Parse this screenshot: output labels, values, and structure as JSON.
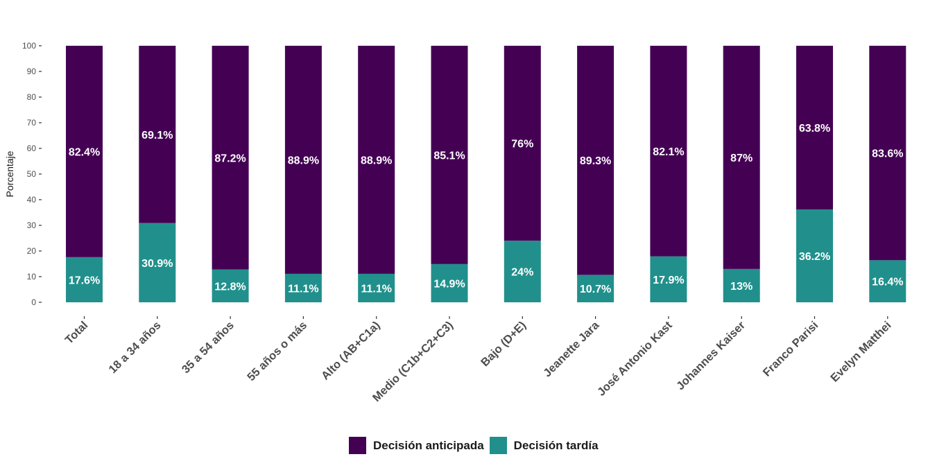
{
  "chart_data": {
    "type": "bar",
    "stacked": true,
    "title": "",
    "xlabel": "",
    "ylabel": "Porcentaje",
    "ylim": [
      0,
      100
    ],
    "yticks": [
      0,
      10,
      20,
      30,
      40,
      50,
      60,
      70,
      80,
      90,
      100
    ],
    "grid": false,
    "legend_position": "bottom",
    "categories": [
      "Total",
      "18 a 34 años",
      "35 a 54 años",
      "55 años o más",
      "Alto (AB+C1a)",
      "Medio (C1b+C2+C3)",
      "Bajo (D+E)",
      "Jeanette Jara",
      "José Antonio Kast",
      "Johannes Kaiser",
      "Franco Parisi",
      "Evelyn Matthei"
    ],
    "series": [
      {
        "name": "Decisión tardía",
        "color": "#21908C",
        "values": [
          17.6,
          30.9,
          12.8,
          11.1,
          11.1,
          14.9,
          24,
          10.7,
          17.9,
          13,
          36.2,
          16.4
        ],
        "labels": [
          "17.6%",
          "30.9%",
          "12.8%",
          "11.1%",
          "11.1%",
          "14.9%",
          "24%",
          "10.7%",
          "17.9%",
          "13%",
          "36.2%",
          "16.4%"
        ]
      },
      {
        "name": "Decisión anticipada",
        "color": "#440154",
        "values": [
          82.4,
          69.1,
          87.2,
          88.9,
          88.9,
          85.1,
          76,
          89.3,
          82.1,
          87,
          63.8,
          83.6
        ],
        "labels": [
          "82.4%",
          "69.1%",
          "87.2%",
          "88.9%",
          "88.9%",
          "85.1%",
          "76%",
          "89.3%",
          "82.1%",
          "87%",
          "63.8%",
          "83.6%"
        ]
      }
    ]
  },
  "legend": {
    "items": [
      {
        "label": "Decisión anticipada",
        "color": "#440154"
      },
      {
        "label": "Decisión tardía",
        "color": "#21908C"
      }
    ]
  }
}
